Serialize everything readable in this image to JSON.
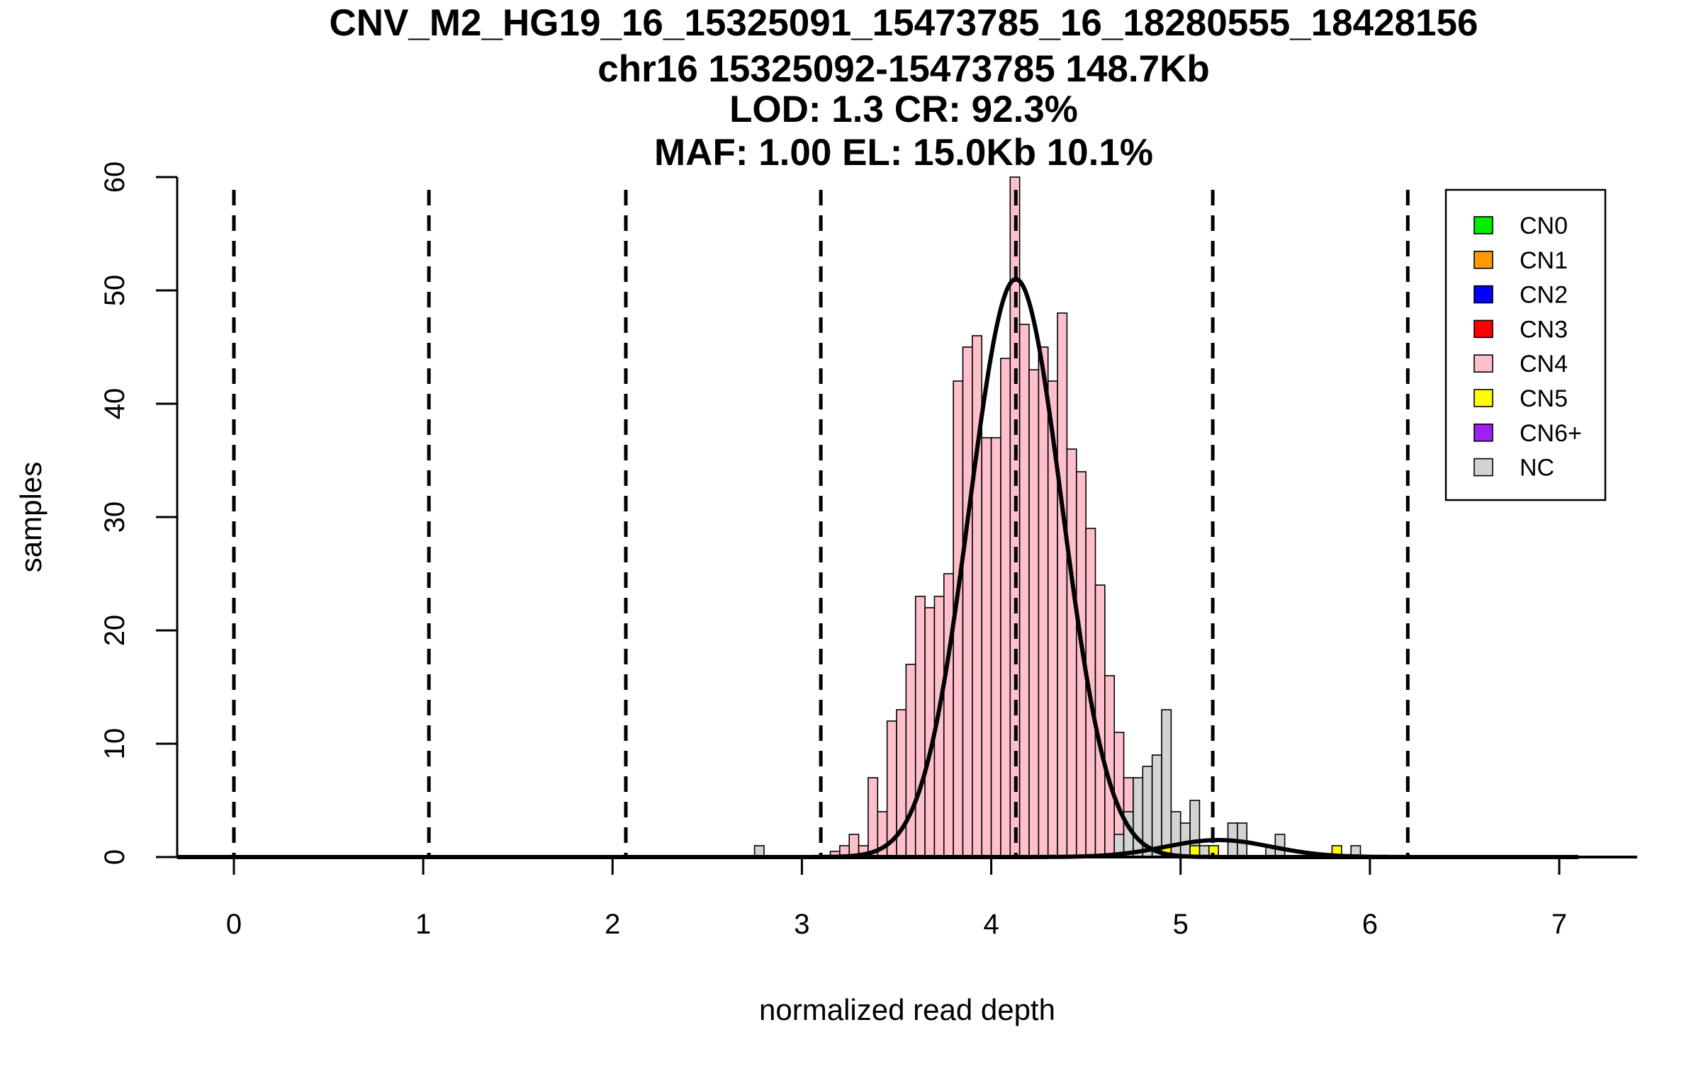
{
  "chart_data": {
    "type": "bar",
    "title_lines": [
      "CNV_M2_HG19_16_15325091_15473785_16_18280555_18428156",
      "chr16 15325092-15473785 148.7Kb",
      "LOD: 1.3 CR: 92.3%",
      "MAF: 1.00 EL: 15.0Kb 10.1%"
    ],
    "xlabel": "normalized read depth",
    "ylabel": "samples",
    "xlim": [
      -0.3,
      7.4
    ],
    "ylim": [
      0,
      60
    ],
    "x_ticks": [
      0,
      1,
      2,
      3,
      4,
      5,
      6,
      7
    ],
    "x_tick_labels": [
      "0",
      "1",
      "2",
      "3",
      "4",
      "5",
      "6",
      "7"
    ],
    "y_ticks": [
      0,
      10,
      20,
      30,
      40,
      50,
      60
    ],
    "y_tick_labels": [
      "0",
      "10",
      "20",
      "30",
      "40",
      "50",
      "60"
    ],
    "bin_width": 0.05,
    "cn_boundaries": [
      0,
      1.03,
      2.07,
      3.1,
      4.13,
      5.17,
      6.2
    ],
    "legend": {
      "position": "top-right",
      "entries": [
        {
          "label": "CN0",
          "color": "#00ee00"
        },
        {
          "label": "CN1",
          "color": "#ff9900"
        },
        {
          "label": "CN2",
          "color": "#0000ff"
        },
        {
          "label": "CN3",
          "color": "#ff0000"
        },
        {
          "label": "CN4",
          "color": "#ffc0cb"
        },
        {
          "label": "CN5",
          "color": "#ffff00"
        },
        {
          "label": "CN6+",
          "color": "#a020f0"
        },
        {
          "label": "NC",
          "color": "#d3d3d3"
        }
      ]
    },
    "series": [
      {
        "name": "CN4",
        "color": "#ffc0cb",
        "bins": [
          {
            "x0": 3.15,
            "value": 0.5
          },
          {
            "x0": 3.2,
            "value": 1
          },
          {
            "x0": 3.25,
            "value": 2
          },
          {
            "x0": 3.3,
            "value": 1
          },
          {
            "x0": 3.35,
            "value": 7
          },
          {
            "x0": 3.4,
            "value": 4
          },
          {
            "x0": 3.45,
            "value": 12
          },
          {
            "x0": 3.5,
            "value": 13
          },
          {
            "x0": 3.55,
            "value": 17
          },
          {
            "x0": 3.6,
            "value": 23
          },
          {
            "x0": 3.65,
            "value": 22
          },
          {
            "x0": 3.7,
            "value": 23
          },
          {
            "x0": 3.75,
            "value": 25
          },
          {
            "x0": 3.8,
            "value": 42
          },
          {
            "x0": 3.85,
            "value": 45
          },
          {
            "x0": 3.9,
            "value": 46
          },
          {
            "x0": 3.95,
            "value": 37
          },
          {
            "x0": 4.0,
            "value": 37
          },
          {
            "x0": 4.05,
            "value": 44
          },
          {
            "x0": 4.1,
            "value": 60
          },
          {
            "x0": 4.15,
            "value": 47
          },
          {
            "x0": 4.2,
            "value": 43
          },
          {
            "x0": 4.25,
            "value": 45
          },
          {
            "x0": 4.3,
            "value": 42
          },
          {
            "x0": 4.35,
            "value": 48
          },
          {
            "x0": 4.4,
            "value": 36
          },
          {
            "x0": 4.45,
            "value": 34
          },
          {
            "x0": 4.5,
            "value": 29
          },
          {
            "x0": 4.55,
            "value": 24
          },
          {
            "x0": 4.6,
            "value": 16
          },
          {
            "x0": 4.65,
            "value": 11
          },
          {
            "x0": 4.7,
            "value": 7
          },
          {
            "x0": 4.75,
            "value": 4
          },
          {
            "x0": 4.8,
            "value": 3
          },
          {
            "x0": 4.85,
            "value": 1
          }
        ]
      },
      {
        "name": "NC",
        "color": "#d3d3d3",
        "bins": [
          {
            "x0": 2.75,
            "value": 1
          },
          {
            "x0": 4.65,
            "value": 2
          },
          {
            "x0": 4.7,
            "value": 4
          },
          {
            "x0": 4.75,
            "value": 7
          },
          {
            "x0": 4.8,
            "value": 8
          },
          {
            "x0": 4.85,
            "value": 9
          },
          {
            "x0": 4.9,
            "value": 13
          },
          {
            "x0": 4.95,
            "value": 4
          },
          {
            "x0": 5.0,
            "value": 3
          },
          {
            "x0": 5.05,
            "value": 5
          },
          {
            "x0": 5.1,
            "value": 1
          },
          {
            "x0": 5.25,
            "value": 3
          },
          {
            "x0": 5.3,
            "value": 3
          },
          {
            "x0": 5.45,
            "value": 1
          },
          {
            "x0": 5.5,
            "value": 2
          },
          {
            "x0": 5.9,
            "value": 1
          }
        ]
      },
      {
        "name": "CN5",
        "color": "#ffff00",
        "bins": [
          {
            "x0": 4.9,
            "value": 1
          },
          {
            "x0": 5.05,
            "value": 1
          },
          {
            "x0": 5.15,
            "value": 1
          },
          {
            "x0": 5.8,
            "value": 1
          }
        ]
      }
    ],
    "fits": [
      {
        "name": "CN4-fit",
        "mean": 4.13,
        "sd": 0.245,
        "peak": 51
      },
      {
        "name": "CN5-fit",
        "mean": 5.2,
        "sd": 0.28,
        "peak": 1.5
      }
    ]
  }
}
